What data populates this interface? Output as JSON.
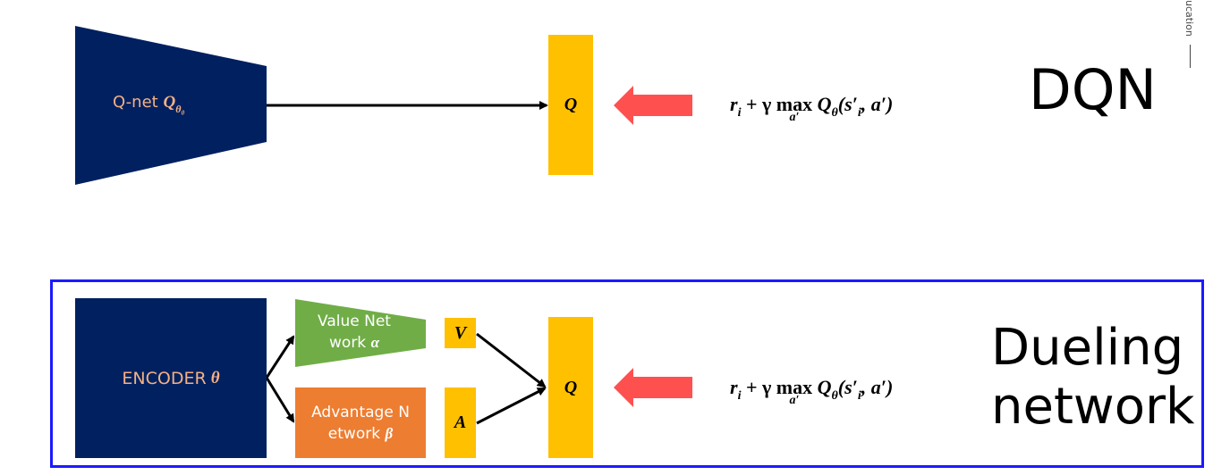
{
  "dqn": {
    "qnet_label": "Q-net",
    "qnet_symbol": "Q",
    "qnet_subscript": "θ₀",
    "q_label": "Q",
    "title": "DQN"
  },
  "formula": {
    "r": "r",
    "r_sub": "i",
    "plus_gamma": " + γ ",
    "max": "max",
    "max_sub": "a′",
    "q": " Q",
    "q_sub": "θ",
    "args_open": "(s′",
    "args_sub": "i",
    "args_close": ", a′)"
  },
  "dueling": {
    "encoder_label": "ENCODER",
    "encoder_symbol": "θ",
    "value_line1": "Value Net",
    "value_line2": "work",
    "value_symbol": "α",
    "adv_line1": "Advantage N",
    "adv_line2": "etwork",
    "adv_symbol": "β",
    "v_label": "V",
    "a_label": "A",
    "q_label": "Q",
    "title_line1": "Dueling",
    "title_line2": "network"
  },
  "side_text": "ucation",
  "colors": {
    "navy": "#002060",
    "gold": "#FFC000",
    "green": "#70AD47",
    "orange": "#ED7D31",
    "red_arrow": "#FF5050",
    "label_peach": "#F4B183",
    "frame_blue": "#1a1aff"
  }
}
